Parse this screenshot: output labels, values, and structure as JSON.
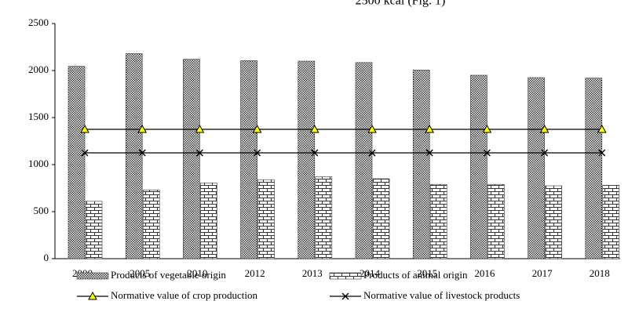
{
  "chart_data": {
    "type": "bar",
    "annotation": "2500 kcal (Fig. 1)",
    "categories": [
      "2000",
      "2005",
      "2010",
      "2012",
      "2013",
      "2014",
      "2015",
      "2016",
      "2017",
      "2018"
    ],
    "series": [
      {
        "name": "Products of vegetable origin",
        "type": "bar",
        "pattern": "dots",
        "color": "#333333",
        "values": [
          2045,
          2180,
          2120,
          2105,
          2100,
          2085,
          2005,
          1950,
          1925,
          1920
        ]
      },
      {
        "name": "Products of animal origin",
        "type": "bar",
        "pattern": "bricks",
        "color": "#333333",
        "values": [
          610,
          730,
          805,
          840,
          870,
          850,
          790,
          790,
          775,
          780
        ]
      },
      {
        "name": "Normative value of crop production",
        "type": "line",
        "marker": "triangle",
        "color": "#000000",
        "marker_color": "#ffff00",
        "values": [
          1375,
          1375,
          1375,
          1375,
          1375,
          1375,
          1375,
          1375,
          1375,
          1375
        ]
      },
      {
        "name": "Normative value of livestock products",
        "type": "line",
        "marker": "x",
        "color": "#000000",
        "values": [
          1125,
          1125,
          1125,
          1125,
          1125,
          1125,
          1125,
          1125,
          1125,
          1125
        ]
      }
    ],
    "ylim": [
      0,
      2500
    ],
    "yticks": [
      0,
      500,
      1000,
      1500,
      2000,
      2500
    ],
    "grid": false,
    "legend": "bottom"
  }
}
